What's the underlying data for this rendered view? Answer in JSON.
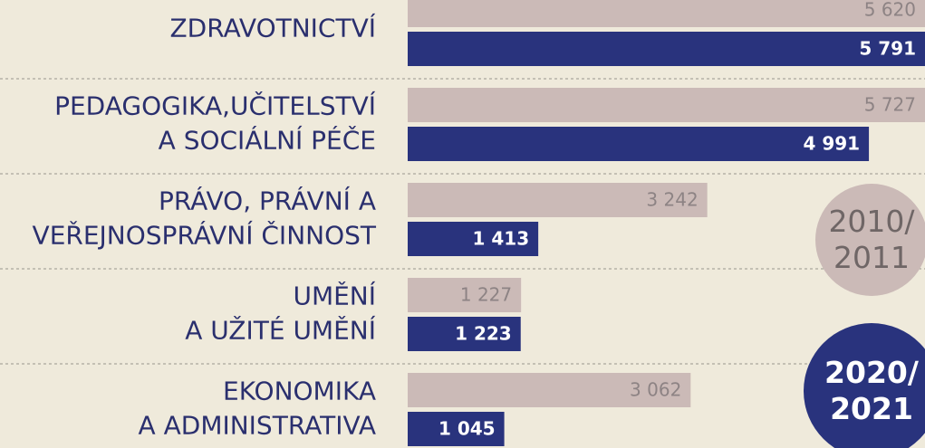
{
  "chart_data": {
    "type": "bar",
    "orientation": "horizontal",
    "categories": [
      [
        "ZDRAVOTNICTVÍ"
      ],
      [
        "PEDAGOGIKA,UČITELSTVÍ",
        "A SOCIÁLNÍ PÉČE"
      ],
      [
        "PRÁVO, PRÁVNÍ A",
        "VEŘEJNOSPRÁVNÍ ČINNOST"
      ],
      [
        "UMĚNÍ",
        "A UŽITÉ UMĚNÍ"
      ],
      [
        "EKONOMIKA",
        "A ADMINISTRATIVA"
      ]
    ],
    "series": [
      {
        "name": "2010/2011",
        "color": "#cbbab7",
        "label_color": "#8d8384",
        "values": [
          5620,
          5727,
          3242,
          1227,
          3062
        ],
        "value_labels": [
          "5 620",
          "5 727",
          "3 242",
          "1 227",
          "3 062"
        ]
      },
      {
        "name": "2020/2021",
        "color": "#29337d",
        "label_color": "#ffffff",
        "values": [
          5791,
          4991,
          1413,
          1223,
          1045
        ],
        "value_labels": [
          "5 791",
          "4 991",
          "1 413",
          "1 223",
          "1 045"
        ]
      }
    ],
    "xlim": [
      0,
      5000
    ]
  }
}
